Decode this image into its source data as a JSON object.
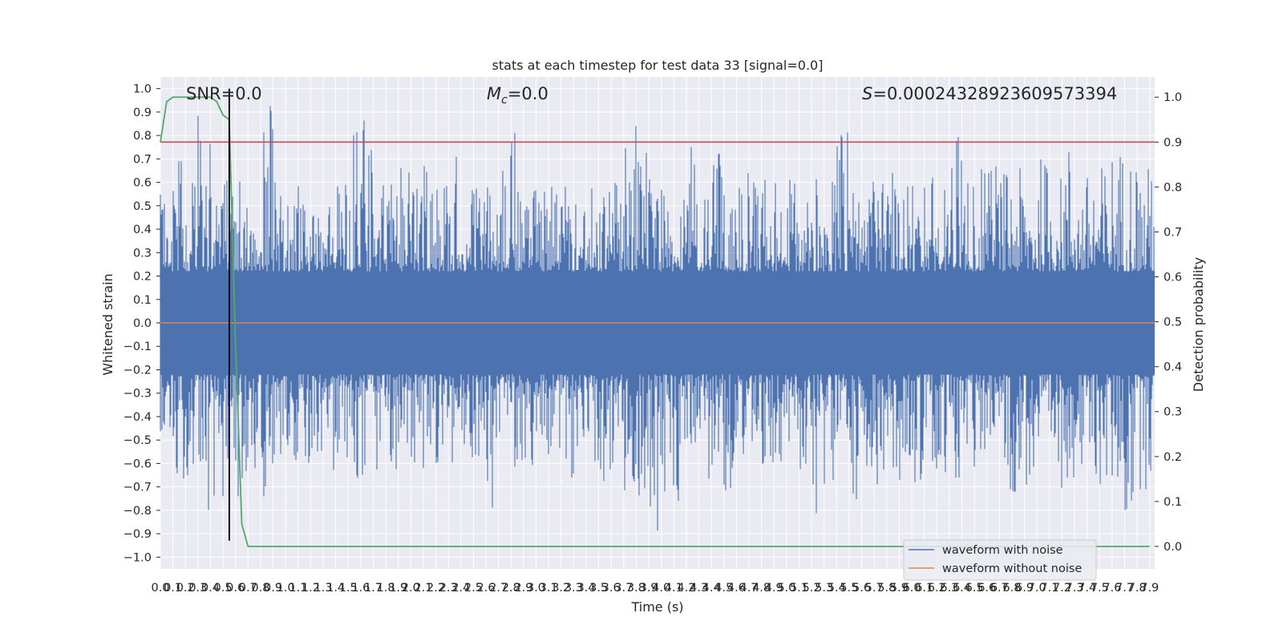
{
  "chart_data": {
    "type": "line",
    "title": "stats at each timestep for test data 33 [signal=0.0]",
    "xlabel": "Time (s)",
    "ylabel": "Whitened strain",
    "y2label": "Detection probability",
    "xlim": [
      0.0,
      7.94
    ],
    "ylim": [
      -1.05,
      1.05
    ],
    "y2lim": [
      -0.05,
      1.045
    ],
    "xticks": [
      "0.0",
      "0.1",
      "0.2",
      "0.3",
      "0.4",
      "0.5",
      "0.6",
      "0.7",
      "0.8",
      "0.9",
      "1.0",
      "1.1",
      "1.2",
      "1.3",
      "1.4",
      "1.5",
      "1.6",
      "1.7",
      "1.8",
      "1.9",
      "2.0",
      "2.1",
      "2.2",
      "2.3",
      "2.4",
      "2.5",
      "2.6",
      "2.7",
      "2.8",
      "2.9",
      "3.0",
      "3.1",
      "3.2",
      "3.3",
      "3.4",
      "3.5",
      "3.6",
      "3.7",
      "3.8",
      "3.9",
      "4.0",
      "4.1",
      "4.2",
      "4.3",
      "4.4",
      "4.5",
      "4.6",
      "4.7",
      "4.8",
      "4.9",
      "5.0",
      "5.1",
      "5.2",
      "5.3",
      "5.4",
      "5.5",
      "5.6",
      "5.7",
      "5.8",
      "5.9",
      "6.0",
      "6.1",
      "6.2",
      "6.3",
      "6.4",
      "6.5",
      "6.6",
      "6.7",
      "6.8",
      "6.9",
      "7.0",
      "7.1",
      "7.2",
      "7.3",
      "7.4",
      "7.5",
      "7.6",
      "7.7",
      "7.8",
      "7.9"
    ],
    "yticks": [
      "-1.0",
      "-0.9",
      "-0.8",
      "-0.7",
      "-0.6",
      "-0.5",
      "-0.4",
      "-0.3",
      "-0.2",
      "-0.1",
      "0.0",
      "0.1",
      "0.2",
      "0.3",
      "0.4",
      "0.5",
      "0.6",
      "0.7",
      "0.8",
      "0.9",
      "1.0"
    ],
    "y2ticks": [
      "0.0",
      "0.1",
      "0.2",
      "0.3",
      "0.4",
      "0.5",
      "0.6",
      "0.7",
      "0.8",
      "0.9",
      "1.0"
    ],
    "annotations": {
      "snr": "SNR=0.0",
      "mc_symbol": "M",
      "mc_sub": "c",
      "mc_value": "=0.0",
      "s_symbol": "S",
      "s_value": "=0.00024328923609573394"
    },
    "series": [
      {
        "name": "waveform with noise",
        "color": "#4c72b0",
        "kind": "noise",
        "envelope_x": [
          0.0,
          0.1,
          0.2,
          0.3,
          0.4,
          0.5,
          0.6,
          0.7,
          0.8,
          0.9,
          1.0,
          1.1,
          1.2,
          1.3,
          1.4,
          1.5,
          1.6,
          1.7,
          1.8,
          1.9,
          2.0,
          2.1,
          2.2,
          2.3,
          2.4,
          2.5,
          2.6,
          2.7,
          2.8,
          2.9,
          3.0,
          3.1,
          3.2,
          3.3,
          3.4,
          3.5,
          3.6,
          3.7,
          3.8,
          3.9,
          4.0,
          4.1,
          4.2,
          4.3,
          4.4,
          4.5,
          4.6,
          4.7,
          4.8,
          4.9,
          5.0,
          5.1,
          5.2,
          5.3,
          5.4,
          5.5,
          5.6,
          5.7,
          5.8,
          5.9,
          6.0,
          6.1,
          6.2,
          6.3,
          6.4,
          6.5,
          6.6,
          6.7,
          6.8,
          6.9,
          7.0,
          7.1,
          7.2,
          7.3,
          7.4,
          7.5,
          7.6,
          7.7,
          7.8,
          7.9
        ],
        "envelope_max": [
          0.58,
          0.69,
          0.66,
          0.95,
          0.6,
          0.62,
          0.62,
          0.61,
          0.99,
          0.6,
          0.55,
          0.6,
          0.6,
          0.59,
          0.62,
          0.87,
          0.89,
          0.65,
          0.59,
          0.66,
          0.59,
          0.67,
          0.6,
          0.8,
          0.59,
          0.62,
          0.62,
          0.83,
          0.81,
          0.62,
          0.6,
          0.58,
          0.61,
          0.58,
          0.62,
          0.6,
          0.64,
          0.84,
          0.85,
          0.65,
          0.71,
          0.6,
          0.82,
          0.63,
          0.8,
          0.63,
          0.64,
          0.6,
          0.66,
          0.62,
          0.61,
          0.6,
          0.64,
          0.63,
          0.87,
          0.65,
          0.66,
          0.62,
          0.64,
          0.67,
          0.6,
          0.66,
          0.63,
          0.99,
          0.64,
          0.68,
          0.83,
          0.66,
          0.66,
          0.62,
          0.72,
          0.64,
          0.8,
          0.6,
          0.69,
          0.68,
          0.77,
          0.75,
          0.68,
          0.87
        ],
        "envelope_min": [
          -0.58,
          -0.76,
          -0.65,
          -0.84,
          -0.76,
          -0.62,
          -0.74,
          -0.62,
          -0.79,
          -0.65,
          -0.6,
          -0.62,
          -0.6,
          -0.66,
          -0.66,
          -0.69,
          -0.83,
          -0.65,
          -0.64,
          -0.6,
          -0.61,
          -0.62,
          -0.7,
          -0.62,
          -0.62,
          -0.66,
          -0.86,
          -0.6,
          -0.7,
          -0.62,
          -0.61,
          -0.64,
          -0.66,
          -0.7,
          -0.69,
          -0.71,
          -0.72,
          -0.74,
          -0.79,
          -0.93,
          -0.72,
          -0.76,
          -0.65,
          -0.68,
          -0.62,
          -0.75,
          -0.84,
          -0.62,
          -0.66,
          -0.62,
          -0.62,
          -0.7,
          -0.88,
          -0.72,
          -0.64,
          -0.85,
          -0.74,
          -0.79,
          -0.66,
          -0.67,
          -0.7,
          -0.65,
          -0.67,
          -0.66,
          -0.7,
          -0.68,
          -0.72,
          -0.71,
          -0.76,
          -0.72,
          -0.67,
          -0.73,
          -0.66,
          -0.72,
          -0.7,
          -0.72,
          -0.75,
          -0.88,
          -0.71,
          -0.68
        ]
      },
      {
        "name": "waveform without noise",
        "color": "#dd8452",
        "x": [
          0.0,
          7.94
        ],
        "y": [
          0.0,
          0.0
        ]
      },
      {
        "color": "#55a868",
        "axis": "right",
        "x": [
          0.0,
          0.05,
          0.1,
          0.2,
          0.3,
          0.4,
          0.45,
          0.5,
          0.55,
          0.6,
          0.65,
          0.7,
          0.8,
          7.9
        ],
        "y": [
          0.9,
          0.99,
          1.0,
          1.0,
          1.0,
          1.0,
          0.99,
          0.96,
          0.95,
          0.45,
          0.05,
          0.0,
          0.0,
          0.0
        ]
      }
    ],
    "threshold": {
      "color": "#c44e52",
      "axis": "right",
      "value": 0.9
    },
    "vline": {
      "color": "#000000",
      "x": 0.55,
      "y": [
        -0.93,
        1.0
      ]
    },
    "legend": {
      "position": "bottom-right",
      "entries": [
        "waveform with noise",
        "waveform without noise"
      ]
    },
    "grid": true
  }
}
